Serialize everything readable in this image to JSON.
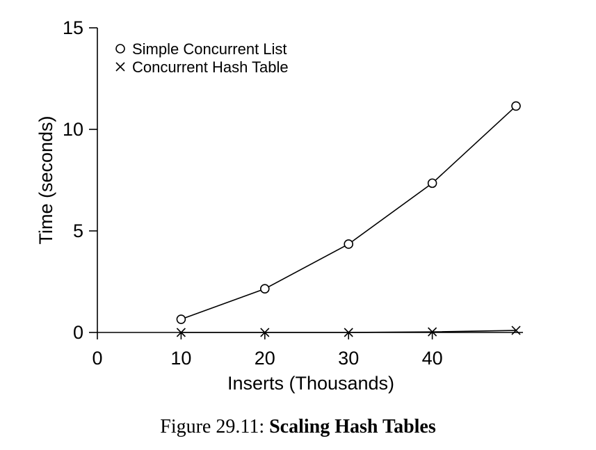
{
  "chart_data": {
    "type": "line",
    "xlabel": "Inserts (Thousands)",
    "ylabel": "Time (seconds)",
    "xlim": [
      0,
      50
    ],
    "ylim": [
      0,
      15
    ],
    "xticks": [
      "0",
      "10",
      "20",
      "30",
      "40"
    ],
    "xtick_values": [
      0,
      10,
      20,
      30,
      40
    ],
    "yticks": [
      "0",
      "5",
      "10",
      "15"
    ],
    "ytick_values": [
      0,
      5,
      10,
      15
    ],
    "grid": false,
    "legend_position": "top-left",
    "series": [
      {
        "name": "Simple Concurrent List",
        "marker": "circle",
        "x": [
          10,
          20,
          30,
          40,
          50
        ],
        "y": [
          0.65,
          2.15,
          4.35,
          7.35,
          11.15
        ]
      },
      {
        "name": "Concurrent Hash Table",
        "marker": "cross",
        "x": [
          10,
          20,
          30,
          40,
          50
        ],
        "y": [
          0.0,
          0.0,
          0.0,
          0.03,
          0.1
        ]
      }
    ]
  },
  "caption": {
    "prefix": "Figure 29.11:",
    "title": "Scaling Hash Tables"
  }
}
